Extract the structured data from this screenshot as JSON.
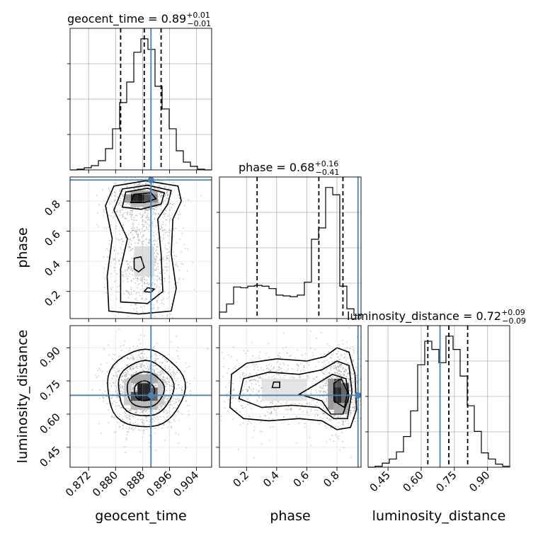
{
  "chart_data": {
    "type": "corner",
    "parameters": [
      "geocent_time",
      "phase",
      "luminosity_distance"
    ],
    "truths": {
      "geocent_time": 0.8905,
      "phase": 0.94,
      "luminosity_distance": 0.685
    },
    "titles": [
      {
        "param": "geocent_time",
        "text": "geocent_time = 0.89",
        "plus": "+0.01",
        "minus": "−0.01"
      },
      {
        "param": "phase",
        "text": "phase = 0.68",
        "plus": "+0.16",
        "minus": "−0.41"
      },
      {
        "param": "luminosity_distance",
        "text": "luminosity_distance = 0.72",
        "plus": "+0.09",
        "minus": "−0.09"
      }
    ],
    "axes": {
      "geocent_time": {
        "range": [
          0.8665,
          0.9085
        ],
        "ticks": [
          0.872,
          0.88,
          0.888,
          0.896,
          0.904
        ],
        "tick_labels": [
          "0.872",
          "0.880",
          "0.888",
          "0.896",
          "0.904"
        ]
      },
      "phase": {
        "range": [
          0.02,
          0.96
        ],
        "ticks": [
          0.2,
          0.4,
          0.6,
          0.8
        ],
        "tick_labels": [
          "0.2",
          "0.4",
          "0.6",
          "0.8"
        ]
      },
      "luminosity_distance": {
        "range": [
          0.36,
          1.0
        ],
        "ticks": [
          0.45,
          0.6,
          0.75,
          0.9
        ],
        "tick_labels": [
          "0.45",
          "0.60",
          "0.75",
          "0.90"
        ]
      }
    },
    "histograms": {
      "geocent_time": {
        "edges_start": 0.8665,
        "bin_width": 0.0021,
        "counts": [
          0,
          1,
          3,
          6,
          13,
          30,
          58,
          95,
          124,
          166,
          185,
          170,
          118,
          86,
          58,
          27,
          11,
          5,
          1,
          0
        ],
        "quantiles": [
          0.8815,
          0.8885,
          0.8935
        ]
      },
      "phase": {
        "edges_start": 0.02,
        "bin_width": 0.047,
        "counts": [
          8,
          18,
          39,
          38,
          40,
          41,
          40,
          37,
          29,
          28,
          27,
          29,
          45,
          98,
          112,
          162,
          153,
          40,
          12,
          4
        ],
        "quantiles": [
          0.27,
          0.68,
          0.84
        ]
      },
      "luminosity_distance": {
        "edges_start": 0.36,
        "bin_width": 0.032,
        "counts": [
          0,
          1,
          4,
          8,
          15,
          30,
          55,
          100,
          123,
          115,
          102,
          128,
          115,
          89,
          60,
          35,
          14,
          8,
          3,
          1
        ],
        "quantiles": [
          0.63,
          0.725,
          0.81
        ]
      }
    },
    "axis_labels": {
      "x": [
        "geocent_time",
        "phase",
        "luminosity_distance"
      ],
      "y": [
        "phase",
        "luminosity_distance"
      ]
    }
  }
}
